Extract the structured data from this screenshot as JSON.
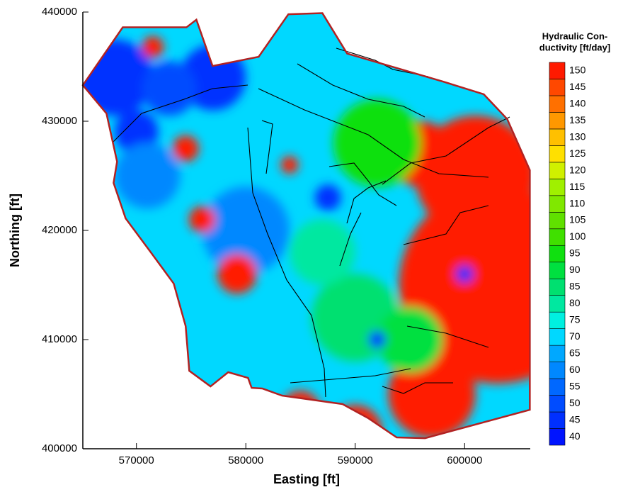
{
  "chart_data": {
    "type": "contour",
    "xlabel": "Easting [ft]",
    "ylabel": "Northing [ft]",
    "xlim": [
      565100,
      606000
    ],
    "ylim": [
      400000,
      440000
    ],
    "xticks": [
      570000,
      580000,
      590000,
      600000
    ],
    "yticks": [
      400000,
      410000,
      420000,
      430000,
      440000
    ],
    "boundary": {
      "color": "#b22222",
      "x": [
        565100,
        568750,
        574570,
        575480,
        576960,
        581170,
        583890,
        587000,
        589260,
        598000,
        601750,
        603890,
        605960,
        605960,
        596380,
        593790,
        591210,
        588840,
        583310,
        581500,
        580530,
        580200,
        578390,
        576770,
        574830,
        574500,
        573410,
        571270,
        569010,
        567910,
        568230,
        567260
      ],
      "y": [
        433300,
        438600,
        438600,
        439300,
        435060,
        435900,
        439800,
        439900,
        436200,
        433640,
        432470,
        430200,
        425520,
        403570,
        400970,
        401040,
        402790,
        404090,
        404870,
        405520,
        405580,
        406490,
        407010,
        405710,
        407140,
        411230,
        415130,
        418050,
        421100,
        424350,
        426300,
        430710
      ]
    },
    "base_value": 70,
    "zones": [
      {
        "x": 603000,
        "y": 415000,
        "r": 9000,
        "value": 150
      },
      {
        "x": 601000,
        "y": 425000,
        "r": 5500,
        "value": 150
      },
      {
        "x": 597000,
        "y": 405000,
        "r": 4000,
        "value": 150
      },
      {
        "x": 596000,
        "y": 427000,
        "r": 3000,
        "value": 150
      },
      {
        "x": 590000,
        "y": 401500,
        "r": 2500,
        "value": 150
      },
      {
        "x": 585000,
        "y": 403500,
        "r": 1800,
        "value": 150
      },
      {
        "x": 592000,
        "y": 428000,
        "r": 4000,
        "value": 95
      },
      {
        "x": 590000,
        "y": 412000,
        "r": 4000,
        "value": 85
      },
      {
        "x": 595000,
        "y": 410000,
        "r": 3000,
        "value": 90
      },
      {
        "x": 587000,
        "y": 418000,
        "r": 3000,
        "value": 80
      },
      {
        "x": 568000,
        "y": 434000,
        "r": 3500,
        "value": 45
      },
      {
        "x": 577000,
        "y": 434000,
        "r": 3000,
        "value": 45
      },
      {
        "x": 573000,
        "y": 433000,
        "r": 2500,
        "value": 50
      },
      {
        "x": 570000,
        "y": 429000,
        "r": 2000,
        "value": 45
      },
      {
        "x": 571000,
        "y": 425000,
        "r": 3000,
        "value": 60
      },
      {
        "x": 580000,
        "y": 420000,
        "r": 4000,
        "value": 62
      },
      {
        "x": 571500,
        "y": 436800,
        "r": 1000,
        "value": 150
      },
      {
        "x": 574500,
        "y": 427500,
        "r": 1200,
        "value": 150
      },
      {
        "x": 576000,
        "y": 421000,
        "r": 1200,
        "value": 150
      },
      {
        "x": 579200,
        "y": 416000,
        "r": 1800,
        "value": 150
      },
      {
        "x": 584000,
        "y": 426000,
        "r": 800,
        "value": 150
      },
      {
        "x": 587500,
        "y": 423000,
        "r": 1200,
        "value": 45
      },
      {
        "x": 592000,
        "y": 410000,
        "r": 800,
        "value": 45
      },
      {
        "x": 600000,
        "y": 416000,
        "r": 800,
        "value": 45
      }
    ],
    "colorbar": {
      "title": [
        "Hydraulic Con-",
        "ductivity [ft/day]"
      ],
      "levels": [
        40,
        45,
        50,
        55,
        60,
        65,
        70,
        75,
        80,
        85,
        90,
        95,
        100,
        105,
        110,
        115,
        120,
        125,
        130,
        135,
        140,
        145,
        150
      ],
      "colors": [
        "#0014ff",
        "#0030ff",
        "#004cff",
        "#0068ff",
        "#0088ff",
        "#00a8ff",
        "#00d8ff",
        "#00f0e0",
        "#00e8a0",
        "#00e070",
        "#00e040",
        "#10e010",
        "#40e000",
        "#60e000",
        "#80e800",
        "#a0f000",
        "#d0f000",
        "#ffe000",
        "#ffc000",
        "#ff9800",
        "#ff7000",
        "#ff4800",
        "#ff1a00"
      ]
    }
  }
}
